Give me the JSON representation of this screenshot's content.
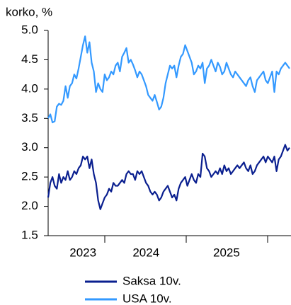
{
  "chart_data": {
    "type": "line",
    "title": "korko, %",
    "categories": [
      null,
      null,
      null,
      null,
      null,
      null,
      null,
      null,
      null,
      null,
      null,
      null,
      null,
      null,
      null,
      null,
      "2023",
      null,
      null,
      null,
      null,
      null,
      null,
      null,
      null,
      null,
      null,
      null,
      null,
      null,
      null,
      null,
      null,
      null,
      null,
      null,
      null,
      null,
      null,
      null,
      null,
      null,
      null,
      null,
      null,
      "2024",
      null,
      null,
      null,
      null,
      null,
      null,
      null,
      null,
      null,
      null,
      null,
      null,
      null,
      null,
      null,
      null,
      null,
      null,
      null,
      null,
      null,
      null,
      null,
      null,
      null,
      null,
      null,
      null,
      null,
      null,
      null,
      null,
      null,
      null,
      null,
      null,
      "2025",
      null,
      null,
      null,
      null,
      null,
      null,
      null,
      null,
      null,
      null,
      null,
      null,
      null,
      null,
      null,
      null,
      null,
      null,
      null,
      null,
      null,
      null,
      null,
      null,
      null,
      null,
      null,
      null,
      null
    ],
    "series": [
      {
        "name": "Saksa 10v.",
        "color": "#0a1f8f",
        "values": [
          2.15,
          2.4,
          2.5,
          2.35,
          2.3,
          2.55,
          2.4,
          2.5,
          2.45,
          2.6,
          2.45,
          2.5,
          2.6,
          2.55,
          2.65,
          2.7,
          2.85,
          2.8,
          2.85,
          2.65,
          2.8,
          2.55,
          2.4,
          2.1,
          1.95,
          2.05,
          2.15,
          2.2,
          2.3,
          2.25,
          2.4,
          2.35,
          2.35,
          2.4,
          2.45,
          2.4,
          2.55,
          2.6,
          2.55,
          2.55,
          2.45,
          2.6,
          2.55,
          2.6,
          2.5,
          2.4,
          2.35,
          2.25,
          2.2,
          2.25,
          2.2,
          2.1,
          2.15,
          2.25,
          2.3,
          2.35,
          2.25,
          2.15,
          2.2,
          2.1,
          2.3,
          2.4,
          2.45,
          2.5,
          2.35,
          2.45,
          2.55,
          2.45,
          2.4,
          2.55,
          2.5,
          2.9,
          2.85,
          2.65,
          2.6,
          2.5,
          2.55,
          2.6,
          2.55,
          2.65,
          2.55,
          2.7,
          2.6,
          2.65,
          2.55,
          2.6,
          2.65,
          2.7,
          2.65,
          2.7,
          2.75,
          2.65,
          2.6,
          2.7,
          2.55,
          2.6,
          2.7,
          2.75,
          2.8,
          2.85,
          2.75,
          2.85,
          2.8,
          2.75,
          2.85,
          2.6,
          2.8,
          2.85,
          2.95,
          3.05,
          2.95,
          3.0
        ]
      },
      {
        "name": "USA 10v.",
        "color": "#3399ff",
        "values": [
          3.5,
          3.57,
          3.43,
          3.45,
          3.7,
          3.75,
          3.73,
          3.8,
          4.05,
          3.85,
          4.05,
          4.1,
          4.25,
          4.18,
          4.35,
          4.55,
          4.75,
          4.9,
          4.62,
          4.8,
          4.45,
          4.3,
          3.95,
          4.1,
          4.0,
          3.95,
          4.25,
          4.15,
          4.2,
          4.3,
          4.25,
          4.4,
          4.45,
          4.3,
          4.55,
          4.62,
          4.7,
          4.45,
          4.5,
          4.42,
          4.32,
          4.2,
          4.3,
          4.25,
          4.15,
          4.05,
          3.9,
          3.85,
          3.8,
          3.9,
          3.78,
          3.65,
          3.7,
          3.85,
          4.1,
          4.25,
          4.4,
          4.35,
          4.4,
          4.2,
          4.4,
          4.55,
          4.6,
          4.75,
          4.65,
          4.55,
          4.45,
          4.25,
          4.3,
          4.4,
          4.35,
          4.45,
          4.1,
          4.35,
          4.4,
          4.5,
          4.4,
          4.3,
          4.45,
          4.38,
          4.25,
          4.3,
          4.45,
          4.35,
          4.25,
          4.2,
          4.3,
          4.25,
          4.2,
          4.15,
          4.1,
          4.05,
          4.15,
          4.2,
          4.05,
          3.95,
          4.15,
          4.2,
          4.25,
          4.3,
          4.15,
          4.1,
          4.2,
          4.3,
          3.95,
          4.3,
          4.25,
          4.35,
          4.4,
          4.45,
          4.4,
          4.35
        ]
      }
    ],
    "ylim": [
      1.5,
      5.0
    ],
    "yticks": [
      {
        "value": 1.5,
        "label": "1.5"
      },
      {
        "value": 2,
        "label": "2.0"
      },
      {
        "value": 2.5,
        "label": "2.5"
      },
      {
        "value": 3,
        "label": "3.0"
      },
      {
        "value": 3.5,
        "label": "3.5"
      },
      {
        "value": 4,
        "label": "4.0"
      },
      {
        "value": 4.5,
        "label": "4.5"
      },
      {
        "value": 5,
        "label": "5.0"
      }
    ],
    "grid": false,
    "legend": "bottom"
  }
}
